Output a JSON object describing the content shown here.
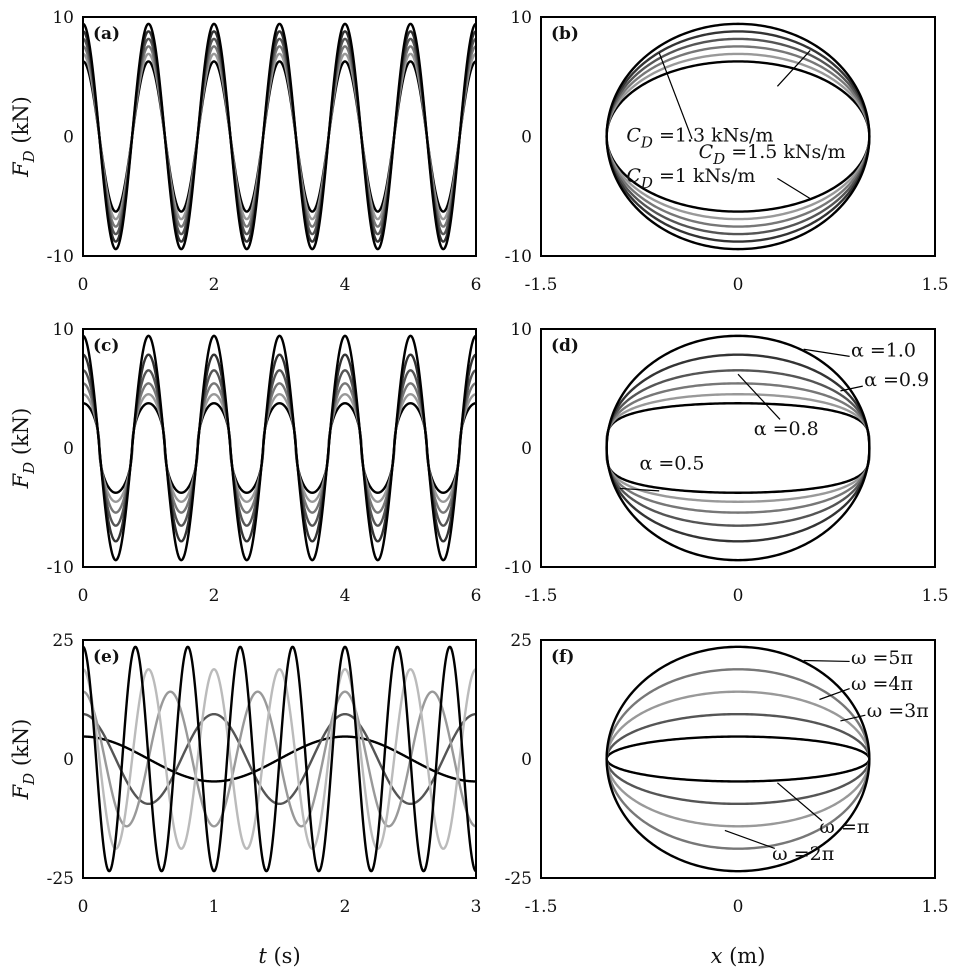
{
  "chart_data": [
    {
      "panel": "(a)",
      "type": "line",
      "xlim": [
        0,
        6
      ],
      "ylim": [
        -10,
        10
      ],
      "xticks": [
        "0",
        "2",
        "4",
        "6"
      ],
      "yticks": [
        "10",
        "0",
        "-10"
      ],
      "ylabel_main": "F",
      "ylabel_sub": "D",
      "ylabel_unit": " (kN)",
      "xlabel": "",
      "mode": "time",
      "omega": 6.283,
      "x_amplitude": 1,
      "series_params": [
        {
          "c": 1.0,
          "a": 1.0,
          "color": "#000000"
        },
        {
          "c": 1.1,
          "a": 1.0,
          "color": "#999999"
        },
        {
          "c": 1.2,
          "a": 1.0,
          "color": "#777777"
        },
        {
          "c": 1.3,
          "a": 1.0,
          "color": "#555555"
        },
        {
          "c": 1.4,
          "a": 1.0,
          "color": "#333333"
        },
        {
          "c": 1.5,
          "a": 1.0,
          "color": "#000000"
        }
      ],
      "annotations": []
    },
    {
      "panel": "(b)",
      "type": "line",
      "xlim": [
        -1.5,
        1.5
      ],
      "ylim": [
        -10,
        10
      ],
      "xticks": [
        "-1.5",
        "0",
        "1.5"
      ],
      "yticks": [
        "10",
        "0",
        "-10"
      ],
      "xlabel": "",
      "mode": "loop",
      "omega": 6.283,
      "x_amplitude": 1,
      "series_params": [
        {
          "c": 1.0,
          "a": 1.0,
          "color": "#000000"
        },
        {
          "c": 1.1,
          "a": 1.0,
          "color": "#999999"
        },
        {
          "c": 1.2,
          "a": 1.0,
          "color": "#777777"
        },
        {
          "c": 1.3,
          "a": 1.0,
          "color": "#555555"
        },
        {
          "c": 1.4,
          "a": 1.0,
          "color": "#333333"
        },
        {
          "c": 1.5,
          "a": 1.0,
          "color": "#000000"
        }
      ],
      "annotations": [
        {
          "main": "C",
          "sub": "D",
          "tail": " =1.5 kNs/m",
          "at": [
            -0.3,
            -1.8
          ],
          "leader": [
            0.55,
            7.2
          ],
          "leader_from": [
            0.3,
            4.2
          ]
        },
        {
          "main": "C",
          "sub": "D",
          "tail": " =1.3 kNs/m",
          "at": [
            -0.85,
            -0.4
          ],
          "leader": [
            -0.6,
            7.0
          ],
          "leader_from": [
            -0.35,
            -0.2
          ]
        },
        {
          "main": "C",
          "sub": "D",
          "tail": " =1 kNs/m",
          "at": [
            -0.85,
            -3.8
          ],
          "leader": [
            0.55,
            -5.2
          ],
          "leader_from": [
            0.3,
            -3.5
          ]
        }
      ]
    },
    {
      "panel": "(c)",
      "type": "line",
      "xlim": [
        0,
        6
      ],
      "ylim": [
        -10,
        10
      ],
      "xticks": [
        "0",
        "2",
        "4",
        "6"
      ],
      "yticks": [
        "10",
        "0",
        "-10"
      ],
      "ylabel_main": "F",
      "ylabel_sub": "D",
      "ylabel_unit": " (kN)",
      "xlabel": "",
      "mode": "time",
      "omega": 6.283,
      "x_amplitude": 1,
      "series_params": [
        {
          "c": 1.5,
          "a": 0.5,
          "color": "#000000"
        },
        {
          "c": 1.5,
          "a": 0.6,
          "color": "#999999"
        },
        {
          "c": 1.5,
          "a": 0.7,
          "color": "#777777"
        },
        {
          "c": 1.5,
          "a": 0.8,
          "color": "#555555"
        },
        {
          "c": 1.5,
          "a": 0.9,
          "color": "#333333"
        },
        {
          "c": 1.5,
          "a": 1.0,
          "color": "#000000"
        }
      ],
      "annotations": []
    },
    {
      "panel": "(d)",
      "type": "line",
      "xlim": [
        -1.5,
        1.5
      ],
      "ylim": [
        -10,
        10
      ],
      "xticks": [
        "-1.5",
        "0",
        "1.5"
      ],
      "yticks": [
        "10",
        "0",
        "-10"
      ],
      "xlabel": "",
      "mode": "loop",
      "omega": 6.283,
      "x_amplitude": 1,
      "series_params": [
        {
          "c": 1.5,
          "a": 0.5,
          "color": "#000000"
        },
        {
          "c": 1.5,
          "a": 0.6,
          "color": "#999999"
        },
        {
          "c": 1.5,
          "a": 0.7,
          "color": "#777777"
        },
        {
          "c": 1.5,
          "a": 0.8,
          "color": "#555555"
        },
        {
          "c": 1.5,
          "a": 0.9,
          "color": "#333333"
        },
        {
          "c": 1.5,
          "a": 1.0,
          "color": "#000000"
        }
      ],
      "annotations": [
        {
          "main": "α",
          "sub": "",
          "tail": " =1.0",
          "at": [
            0.86,
            7.7
          ],
          "leader": [
            0.85,
            7.7
          ],
          "leader_from": [
            0.5,
            8.3
          ]
        },
        {
          "main": "α",
          "sub": "",
          "tail": " =0.9",
          "at": [
            0.96,
            5.2
          ],
          "leader": [
            0.95,
            5.2
          ],
          "leader_from": [
            0.78,
            4.8
          ]
        },
        {
          "main": "α",
          "sub": "",
          "tail": " =0.8",
          "at": [
            0.12,
            1.1
          ],
          "leader": [
            0.32,
            2.4
          ],
          "leader_from": [
            0.0,
            6.2
          ]
        },
        {
          "main": "α",
          "sub": "",
          "tail": " =0.5",
          "at": [
            -0.75,
            -1.8
          ],
          "leader": [
            -0.9,
            -3.4
          ],
          "leader_from": [
            -0.6,
            -3.6
          ]
        }
      ]
    },
    {
      "panel": "(e)",
      "type": "line",
      "xlim": [
        0,
        3
      ],
      "ylim": [
        -25,
        25
      ],
      "xticks": [
        "0",
        "1",
        "2",
        "3"
      ],
      "yticks": [
        "25",
        "0",
        "-25"
      ],
      "ylabel_main": "F",
      "ylabel_sub": "D",
      "ylabel_unit": " (kN)",
      "xlabel_main": "t",
      "xlabel_unit": " (s)",
      "mode": "time",
      "x_amplitude": 1,
      "series_params": [
        {
          "c": 1.5,
          "a": 1.0,
          "omega": 3.1416,
          "color": "#000000"
        },
        {
          "c": 1.5,
          "a": 1.0,
          "omega": 6.2832,
          "color": "#555555"
        },
        {
          "c": 1.5,
          "a": 1.0,
          "omega": 9.4248,
          "color": "#999999"
        },
        {
          "c": 1.5,
          "a": 1.0,
          "omega": 12.566,
          "color": "#bbbbbb"
        },
        {
          "c": 1.5,
          "a": 1.0,
          "omega": 15.708,
          "color": "#000000"
        }
      ],
      "annotations": []
    },
    {
      "panel": "(f)",
      "type": "line",
      "xlim": [
        -1.5,
        1.5
      ],
      "ylim": [
        -25,
        25
      ],
      "xticks": [
        "-1.5",
        "0",
        "1.5"
      ],
      "yticks": [
        "25",
        "0",
        "-25"
      ],
      "xlabel_main": "x",
      "xlabel_unit": " (m)",
      "mode": "loop",
      "x_amplitude": 1,
      "series_params": [
        {
          "c": 1.5,
          "a": 1.0,
          "omega": 3.1416,
          "color": "#000000"
        },
        {
          "c": 1.5,
          "a": 1.0,
          "omega": 6.2832,
          "color": "#555555"
        },
        {
          "c": 1.5,
          "a": 1.0,
          "omega": 9.4248,
          "color": "#999999"
        },
        {
          "c": 1.5,
          "a": 1.0,
          "omega": 12.566,
          "color": "#777777"
        },
        {
          "c": 1.5,
          "a": 1.0,
          "omega": 15.708,
          "color": "#000000"
        }
      ],
      "annotations": [
        {
          "main": "ω",
          "sub": "",
          "tail": " =5π",
          "at": [
            0.86,
            20.0
          ],
          "leader": [
            0.85,
            20.5
          ],
          "leader_from": [
            0.5,
            20.7
          ]
        },
        {
          "main": "ω",
          "sub": "",
          "tail": " =4π",
          "at": [
            0.86,
            14.5
          ],
          "leader": [
            0.85,
            14.8
          ],
          "leader_from": [
            0.62,
            12.5
          ]
        },
        {
          "main": "ω",
          "sub": "",
          "tail": " =3π",
          "at": [
            0.98,
            8.8
          ],
          "leader": [
            0.97,
            9.2
          ],
          "leader_from": [
            0.78,
            8.0
          ]
        },
        {
          "main": "ω",
          "sub": "",
          "tail": " =π",
          "at": [
            0.62,
            -15.5
          ],
          "leader": [
            0.64,
            -13.0
          ],
          "leader_from": [
            0.3,
            -5.0
          ]
        },
        {
          "main": "ω",
          "sub": "",
          "tail": " =2π",
          "at": [
            0.26,
            -21.2
          ],
          "leader": [
            0.28,
            -18.8
          ],
          "leader_from": [
            -0.1,
            -15.0
          ]
        }
      ]
    }
  ]
}
